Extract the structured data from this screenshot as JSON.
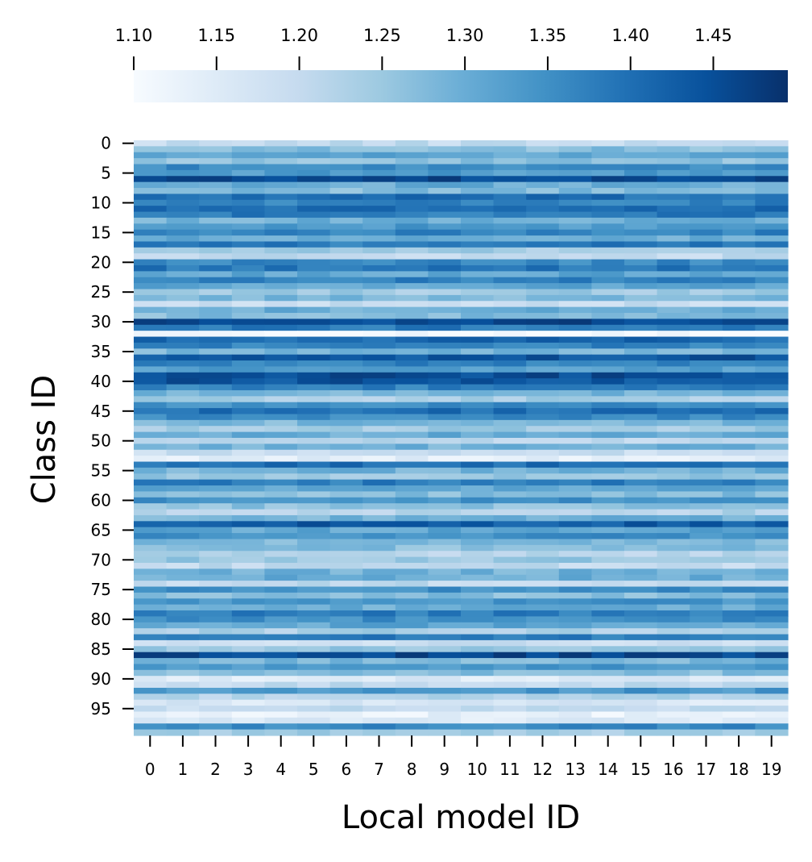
{
  "chart_data": {
    "type": "heatmap",
    "xlabel": "Local model ID",
    "ylabel": "Class ID",
    "x_categories": [
      0,
      1,
      2,
      3,
      4,
      5,
      6,
      7,
      8,
      9,
      10,
      11,
      12,
      13,
      14,
      15,
      16,
      17,
      18,
      19
    ],
    "y_ticks": [
      0,
      5,
      10,
      15,
      20,
      25,
      30,
      35,
      40,
      45,
      50,
      55,
      60,
      65,
      70,
      75,
      80,
      85,
      90,
      95
    ],
    "rows": 100,
    "colormap": "Blues",
    "colorbar": {
      "position": "top",
      "range": [
        1.1,
        1.495
      ],
      "ticks": [
        "1.10",
        "1.15",
        "1.20",
        "1.25",
        "1.30",
        "1.35",
        "1.40",
        "1.45"
      ]
    },
    "row_values": [
      1.2,
      1.27,
      1.31,
      1.26,
      1.36,
      1.33,
      1.46,
      1.3,
      1.27,
      1.4,
      1.37,
      1.4,
      1.38,
      1.29,
      1.33,
      1.37,
      1.3,
      1.38,
      1.24,
      1.2,
      1.36,
      1.39,
      1.31,
      1.37,
      1.31,
      1.24,
      1.28,
      1.19,
      1.3,
      1.27,
      1.46,
      1.38,
      1.1,
      1.41,
      1.37,
      1.28,
      1.44,
      1.37,
      1.32,
      1.45,
      1.44,
      1.37,
      1.29,
      1.23,
      1.35,
      1.4,
      1.36,
      1.28,
      1.24,
      1.3,
      1.21,
      1.29,
      1.19,
      1.14,
      1.4,
      1.29,
      1.25,
      1.38,
      1.31,
      1.27,
      1.35,
      1.26,
      1.22,
      1.29,
      1.43,
      1.31,
      1.35,
      1.28,
      1.27,
      1.22,
      1.25,
      1.2,
      1.29,
      1.3,
      1.2,
      1.35,
      1.27,
      1.34,
      1.3,
      1.38,
      1.35,
      1.31,
      1.23,
      1.38,
      1.19,
      1.25,
      1.46,
      1.28,
      1.34,
      1.27,
      1.15,
      1.2,
      1.34,
      1.22,
      1.16,
      1.2,
      1.13,
      1.15,
      1.36,
      1.24
    ],
    "cell_deviation": 0.025
  }
}
